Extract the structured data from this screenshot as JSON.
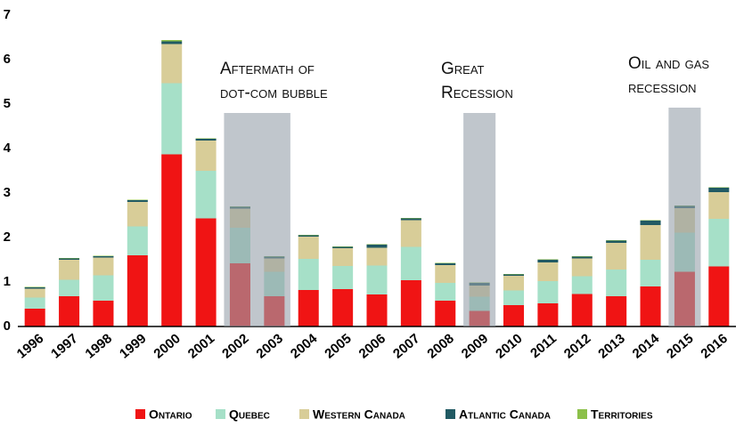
{
  "chart_data": {
    "type": "stacked_bar",
    "categories": [
      "1996",
      "1997",
      "1998",
      "1999",
      "2000",
      "2001",
      "2002",
      "2003",
      "2004",
      "2005",
      "2006",
      "2007",
      "2008",
      "2009",
      "2010",
      "2011",
      "2012",
      "2013",
      "2014",
      "2015",
      "2016"
    ],
    "series": [
      {
        "name": "Ontario",
        "color": "#f01414",
        "values": [
          0.4,
          0.68,
          0.58,
          1.6,
          3.87,
          2.43,
          1.42,
          0.68,
          0.82,
          0.84,
          0.72,
          1.04,
          0.58,
          0.35,
          0.48,
          0.52,
          0.73,
          0.68,
          0.9,
          1.23,
          1.35
        ]
      },
      {
        "name": "Quebec",
        "color": "#a6e0c8",
        "values": [
          0.25,
          0.37,
          0.57,
          0.65,
          1.6,
          1.07,
          0.8,
          0.55,
          0.7,
          0.52,
          0.65,
          0.75,
          0.4,
          0.32,
          0.33,
          0.5,
          0.4,
          0.6,
          0.6,
          0.88,
          1.07
        ]
      },
      {
        "name": "Western Canada",
        "color": "#d8cd98",
        "values": [
          0.2,
          0.45,
          0.4,
          0.55,
          0.88,
          0.68,
          0.43,
          0.3,
          0.5,
          0.4,
          0.4,
          0.6,
          0.4,
          0.25,
          0.33,
          0.42,
          0.4,
          0.6,
          0.78,
          0.55,
          0.6
        ]
      },
      {
        "name": "Atlantic Canada",
        "color": "#215a63",
        "values": [
          0.03,
          0.03,
          0.03,
          0.04,
          0.06,
          0.04,
          0.04,
          0.04,
          0.03,
          0.03,
          0.07,
          0.04,
          0.04,
          0.06,
          0.03,
          0.06,
          0.04,
          0.05,
          0.1,
          0.05,
          0.1
        ]
      },
      {
        "name": "Territories",
        "color": "#8cc04a",
        "values": [
          0.01,
          0.01,
          0.01,
          0.01,
          0.03,
          0.01,
          0.01,
          0.01,
          0.01,
          0.01,
          0.01,
          0.01,
          0.01,
          0.01,
          0.01,
          0.01,
          0.01,
          0.01,
          0.01,
          0.01,
          0.01
        ]
      }
    ],
    "ylim": [
      0,
      7
    ],
    "yticks": [
      0,
      1,
      2,
      3,
      4,
      5,
      6,
      7
    ],
    "grid": false,
    "legend": "bottom",
    "annotations": [
      {
        "lines": [
          "Aftermath of",
          "dot-com bubble"
        ]
      },
      {
        "lines": [
          "Great",
          "Recession"
        ]
      },
      {
        "lines": [
          "Oil and gas",
          "recession"
        ]
      }
    ]
  }
}
